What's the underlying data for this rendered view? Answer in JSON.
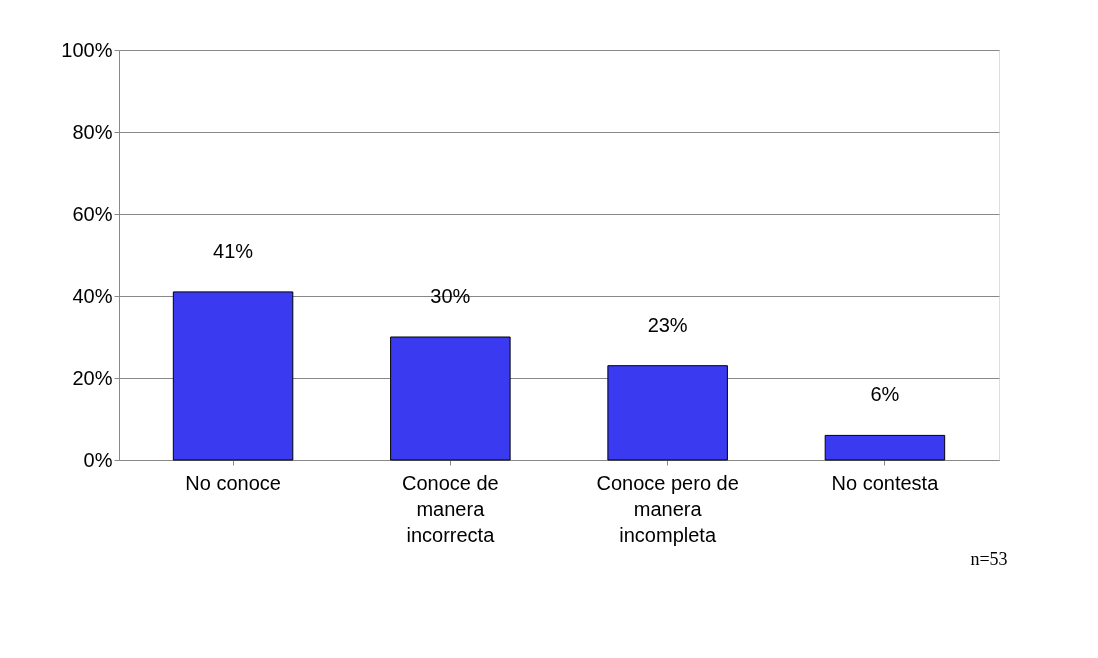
{
  "chart_data": {
    "type": "bar",
    "categories": [
      "No conoce",
      "Conoce de manera incorrecta",
      "Conoce pero de manera incompleta",
      "No contesta"
    ],
    "values": [
      41,
      30,
      23,
      6
    ],
    "value_labels": [
      "41%",
      "30%",
      "23%",
      "6%"
    ],
    "color": "#3a3af0",
    "ylim": [
      0,
      100
    ],
    "yticks": [
      {
        "value": 0,
        "label": "0%"
      },
      {
        "value": 20,
        "label": "20%"
      },
      {
        "value": 40,
        "label": "40%"
      },
      {
        "value": 60,
        "label": "60%"
      },
      {
        "value": 80,
        "label": "80%"
      },
      {
        "value": 100,
        "label": "100%"
      }
    ],
    "grid": "y",
    "annotations": [
      "n=53"
    ]
  }
}
